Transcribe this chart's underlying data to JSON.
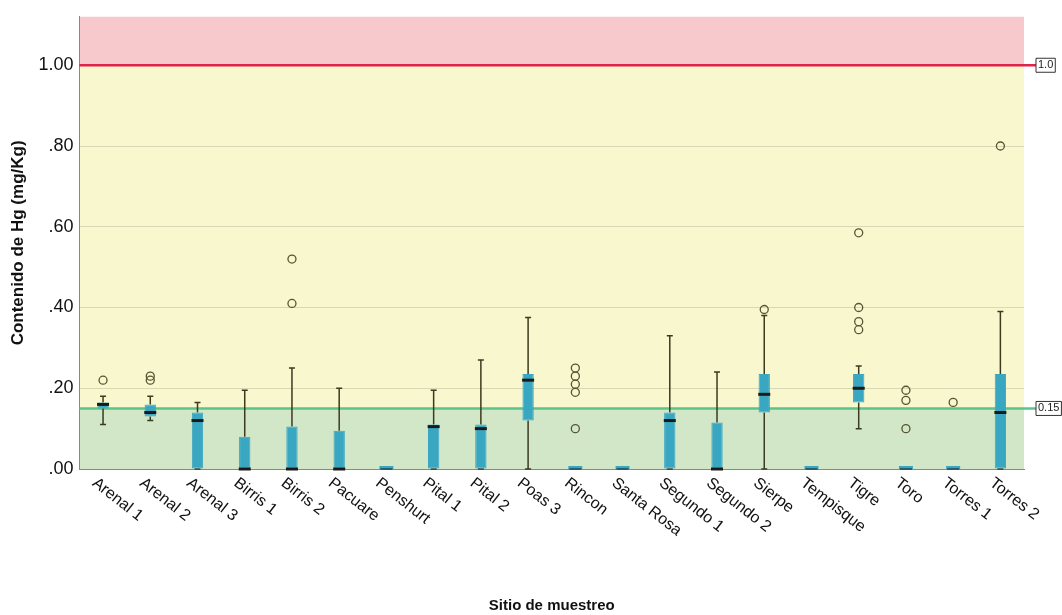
{
  "chart_data": {
    "type": "box",
    "xlabel": "Sitio de muestreo",
    "ylabel": "Contenido de Hg (mg/Kg)",
    "categories": [
      "Arenal 1",
      "Arenal 2",
      "Arenal 3",
      "Birris 1",
      "Birris 2",
      "Pacuare",
      "Penshurt",
      "Pital 1",
      "Pital 2",
      "Poas 3",
      "Rincon",
      "Santa Rosa",
      "Segundo 1",
      "Segundo 2",
      "Sierpe",
      "Tempisque",
      "Tigre",
      "Toro",
      "Torres 1",
      "Torres 2"
    ],
    "color": "#3aa7c2",
    "boxes": [
      {
        "low": 0.11,
        "q1": 0.15,
        "median": 0.16,
        "q3": 0.165,
        "high": 0.18,
        "outliers": [
          0.22
        ]
      },
      {
        "low": 0.12,
        "q1": 0.13,
        "median": 0.14,
        "q3": 0.16,
        "high": 0.18,
        "outliers": [
          0.22,
          0.23
        ]
      },
      {
        "low": 0,
        "q1": 0,
        "median": 0.12,
        "q3": 0.14,
        "high": 0.165
      },
      {
        "low": 0,
        "q1": 0,
        "median": 0,
        "q3": 0.08,
        "high": 0.195
      },
      {
        "low": 0,
        "q1": 0,
        "median": 0,
        "q3": 0.105,
        "high": 0.25,
        "outliers": [
          0.41,
          0.52
        ]
      },
      {
        "low": 0,
        "q1": 0,
        "median": 0,
        "q3": 0.095,
        "high": 0.2
      },
      {
        "low": 0,
        "q1": 0,
        "median": 0,
        "q3": 0,
        "high": 0
      },
      {
        "low": 0,
        "q1": 0,
        "median": 0.105,
        "q3": 0.11,
        "high": 0.195
      },
      {
        "low": 0,
        "q1": 0,
        "median": 0.1,
        "q3": 0.11,
        "high": 0.27
      },
      {
        "low": 0,
        "q1": 0.12,
        "median": 0.22,
        "q3": 0.235,
        "high": 0.375
      },
      {
        "low": 0,
        "q1": 0,
        "median": 0,
        "q3": 0,
        "high": 0,
        "outliers": [
          0.1,
          0.19,
          0.21,
          0.23,
          0.25
        ]
      },
      {
        "low": 0,
        "q1": 0,
        "median": 0,
        "q3": 0,
        "high": 0
      },
      {
        "low": 0,
        "q1": 0,
        "median": 0.12,
        "q3": 0.14,
        "high": 0.33
      },
      {
        "low": 0,
        "q1": 0,
        "median": 0,
        "q3": 0.115,
        "high": 0.24
      },
      {
        "low": 0,
        "q1": 0.14,
        "median": 0.185,
        "q3": 0.235,
        "high": 0.38,
        "outliers": [
          0.395
        ]
      },
      {
        "low": 0,
        "q1": 0,
        "median": 0,
        "q3": 0,
        "high": 0
      },
      {
        "low": 0.1,
        "q1": 0.165,
        "median": 0.2,
        "q3": 0.235,
        "high": 0.255,
        "outliers": [
          0.345,
          0.365,
          0.4,
          0.585
        ]
      },
      {
        "low": 0,
        "q1": 0,
        "median": 0,
        "q3": 0,
        "high": 0,
        "outliers": [
          0.1,
          0.17,
          0.195
        ]
      },
      {
        "low": 0,
        "q1": 0,
        "median": 0,
        "q3": 0,
        "high": 0,
        "outliers": [
          0.165
        ]
      },
      {
        "low": 0,
        "q1": 0,
        "median": 0.14,
        "q3": 0.235,
        "high": 0.39,
        "outliers": [
          0.8
        ]
      }
    ],
    "ylim": [
      0,
      1.12
    ],
    "yticks": [
      {
        "value": 0,
        "label": ".00"
      },
      {
        "value": 0.2,
        "label": ".20"
      },
      {
        "value": 0.4,
        "label": ".40"
      },
      {
        "value": 0.6,
        "label": ".60"
      },
      {
        "value": 0.8,
        "label": ".80"
      },
      {
        "value": 1,
        "label": "1.00"
      }
    ],
    "grid": "y",
    "bands": [
      {
        "axis": "y",
        "from": 0,
        "to": 0.15,
        "color": "#d2e7c7"
      },
      {
        "axis": "y",
        "from": 0.15,
        "to": 1,
        "color": "#f9f7cd"
      },
      {
        "axis": "y",
        "from": 1,
        "to": 1.12,
        "color": "#f7c9cc"
      }
    ],
    "ref_lines": [
      {
        "axis": "y",
        "value": 1,
        "label": "1.0",
        "color": "#e0234a"
      },
      {
        "axis": "y",
        "value": 0.15,
        "label": "0.15",
        "color": "#5cc389"
      }
    ]
  }
}
